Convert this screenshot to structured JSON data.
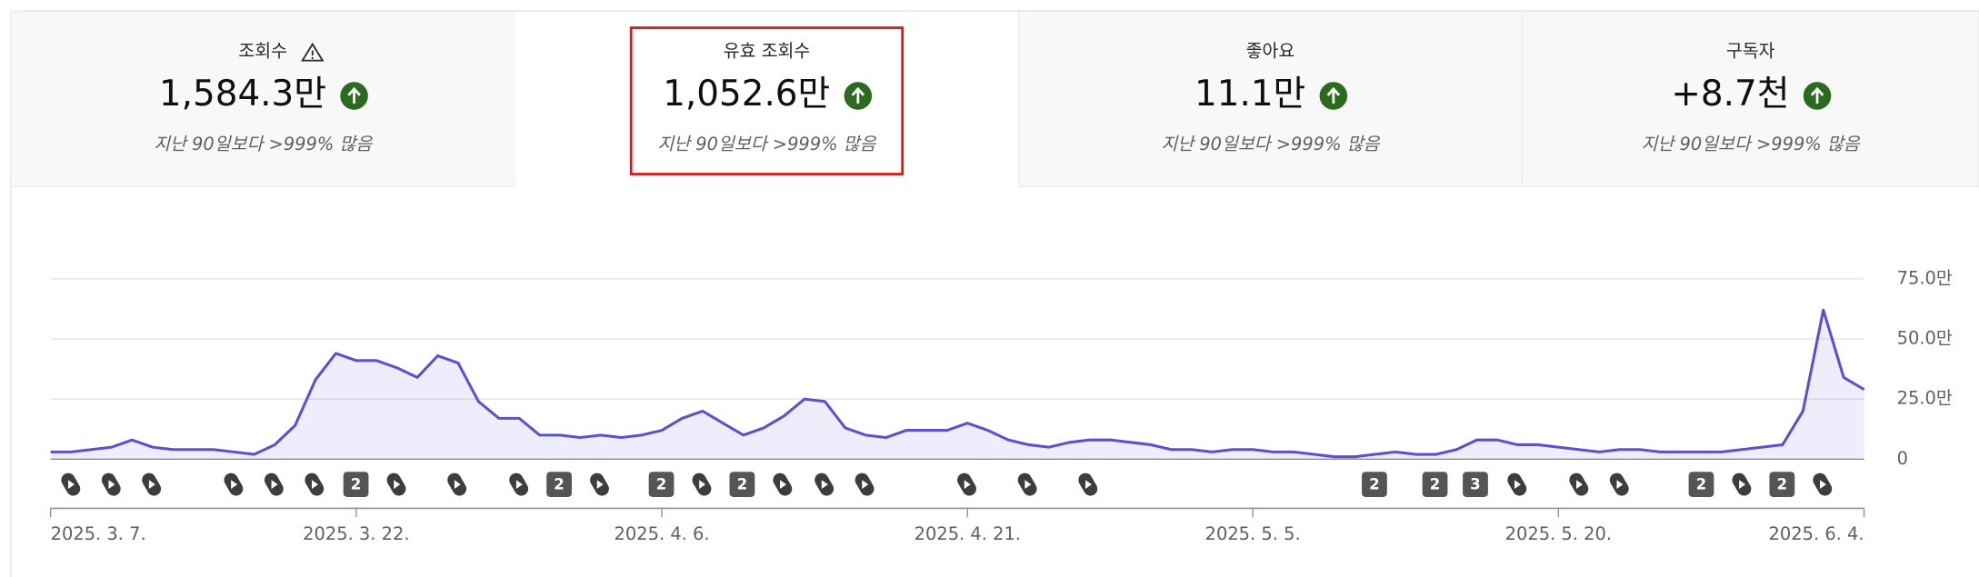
{
  "cards": [
    {
      "label": "조회수",
      "value": "1,584.3만",
      "change": "지난 90일보다 >999% 많음"
    },
    {
      "label": "유효 조회수",
      "value": "1,052.6만",
      "change": "지난 90일보다 >999% 많음"
    },
    {
      "label": "좋아요",
      "value": "11.1만",
      "change": "지난 90일보다 >999% 많음"
    },
    {
      "label": "구독자",
      "value": "+8.7천",
      "change": "지난 90일보다 >999% 많음"
    }
  ],
  "chart_data": {
    "type": "line",
    "color": "#5b4fd3",
    "categories": [
      "2025. 3. 7.",
      null,
      null,
      null,
      null,
      null,
      null,
      null,
      null,
      null,
      null,
      null,
      null,
      null,
      null,
      "2025. 3. 22.",
      null,
      null,
      null,
      null,
      null,
      null,
      null,
      null,
      null,
      null,
      null,
      null,
      null,
      null,
      "2025. 4. 6.",
      null,
      null,
      null,
      null,
      null,
      null,
      null,
      null,
      null,
      null,
      null,
      null,
      null,
      null,
      "2025. 4. 21.",
      null,
      null,
      null,
      null,
      null,
      null,
      null,
      null,
      null,
      null,
      null,
      null,
      null,
      "2025. 5. 5.",
      null,
      null,
      null,
      null,
      null,
      null,
      null,
      null,
      null,
      null,
      null,
      null,
      null,
      null,
      "2025. 5. 20.",
      null,
      null,
      null,
      null,
      null,
      null,
      null,
      null,
      null,
      null,
      null,
      null,
      null,
      null,
      "2025. 6. 4."
    ],
    "values": [
      3,
      3,
      4,
      5,
      8,
      5,
      4,
      4,
      4,
      3,
      2,
      6,
      14,
      33,
      44,
      41,
      41,
      38,
      34,
      43,
      40,
      24,
      17,
      17,
      10,
      10,
      9,
      10,
      9,
      10,
      12,
      17,
      20,
      15,
      10,
      13,
      18,
      25,
      24,
      13,
      10,
      9,
      12,
      12,
      12,
      15,
      12,
      8,
      6,
      5,
      7,
      8,
      8,
      7,
      6,
      4,
      4,
      3,
      4,
      4,
      3,
      3,
      2,
      1,
      1,
      2,
      3,
      2,
      2,
      4,
      8,
      8,
      6,
      6,
      5,
      4,
      3,
      4,
      4,
      3,
      3,
      3,
      3,
      4,
      5,
      6,
      20,
      62,
      34,
      29
    ],
    "ylim": [
      0,
      75
    ],
    "yticks": [
      0,
      {
        "value": 25,
        "label": "25.0만"
      },
      {
        "value": 50,
        "label": "50.0만"
      },
      {
        "value": 75,
        "label": "75.0만"
      }
    ],
    "grid": true,
    "badges": [
      "2",
      "2",
      "2",
      "2",
      "2",
      "2",
      "3",
      "2",
      "2"
    ]
  }
}
